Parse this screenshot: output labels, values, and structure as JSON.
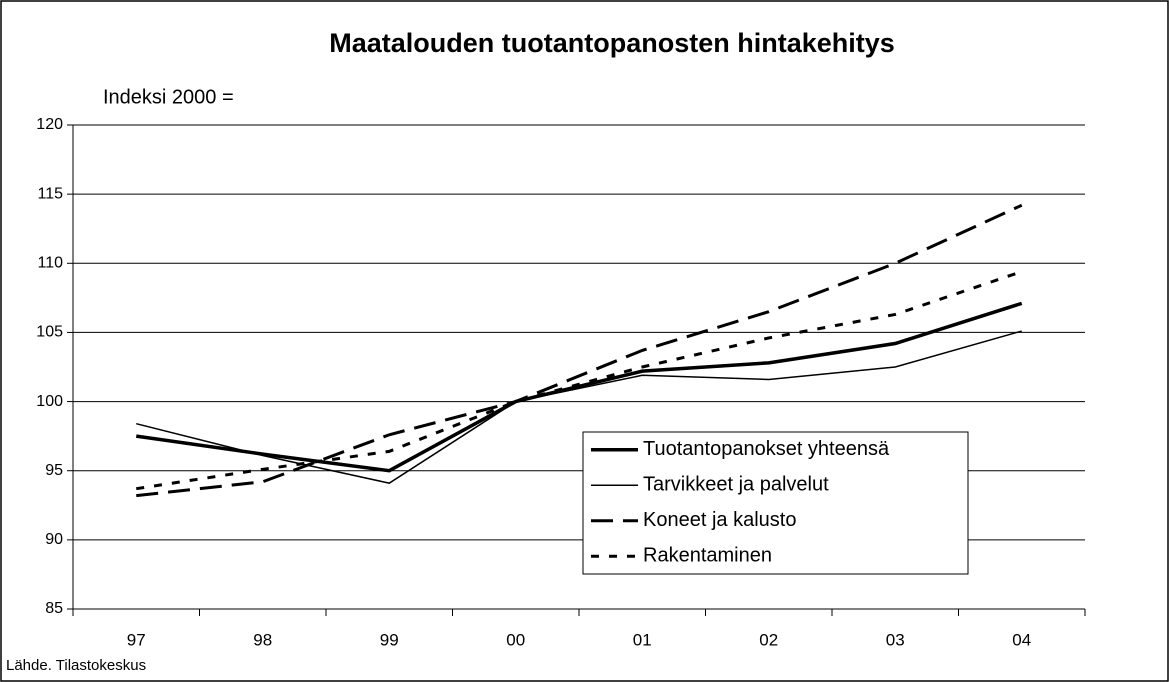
{
  "chart_data": {
    "type": "line",
    "title": "Maatalouden tuotantopanosten hintakehitys",
    "y_label": "Indeksi 2000 =",
    "source": "Lähde. Tilastokeskus",
    "categories": [
      "97",
      "98",
      "99",
      "00",
      "01",
      "02",
      "03",
      "04"
    ],
    "series": [
      {
        "name": "Tuotantopanokset yhteensä",
        "color": "#000000",
        "width": 3.5,
        "dash": "none",
        "values": [
          97.5,
          96.2,
          95.0,
          100,
          102.2,
          102.8,
          104.2,
          107.1
        ]
      },
      {
        "name": "Tarvikkeet ja palvelut",
        "color": "#000000",
        "width": 1.5,
        "dash": "none",
        "values": [
          98.4,
          96.1,
          94.1,
          100,
          101.9,
          101.6,
          102.5,
          105.1
        ]
      },
      {
        "name": "Koneet ja kalusto",
        "color": "#000000",
        "width": 3,
        "dash": "22 10",
        "values": [
          93.2,
          94.2,
          97.6,
          100,
          103.7,
          106.5,
          110.0,
          114.2
        ]
      },
      {
        "name": "Rakentaminen",
        "color": "#000000",
        "width": 3,
        "dash": "8 10",
        "values": [
          93.7,
          95.1,
          96.4,
          100,
          102.5,
          104.6,
          106.3,
          109.4
        ]
      }
    ],
    "ylim": [
      85,
      120
    ],
    "yticks": [
      85,
      90,
      95,
      100,
      105,
      110,
      115,
      120
    ],
    "grid": true
  }
}
